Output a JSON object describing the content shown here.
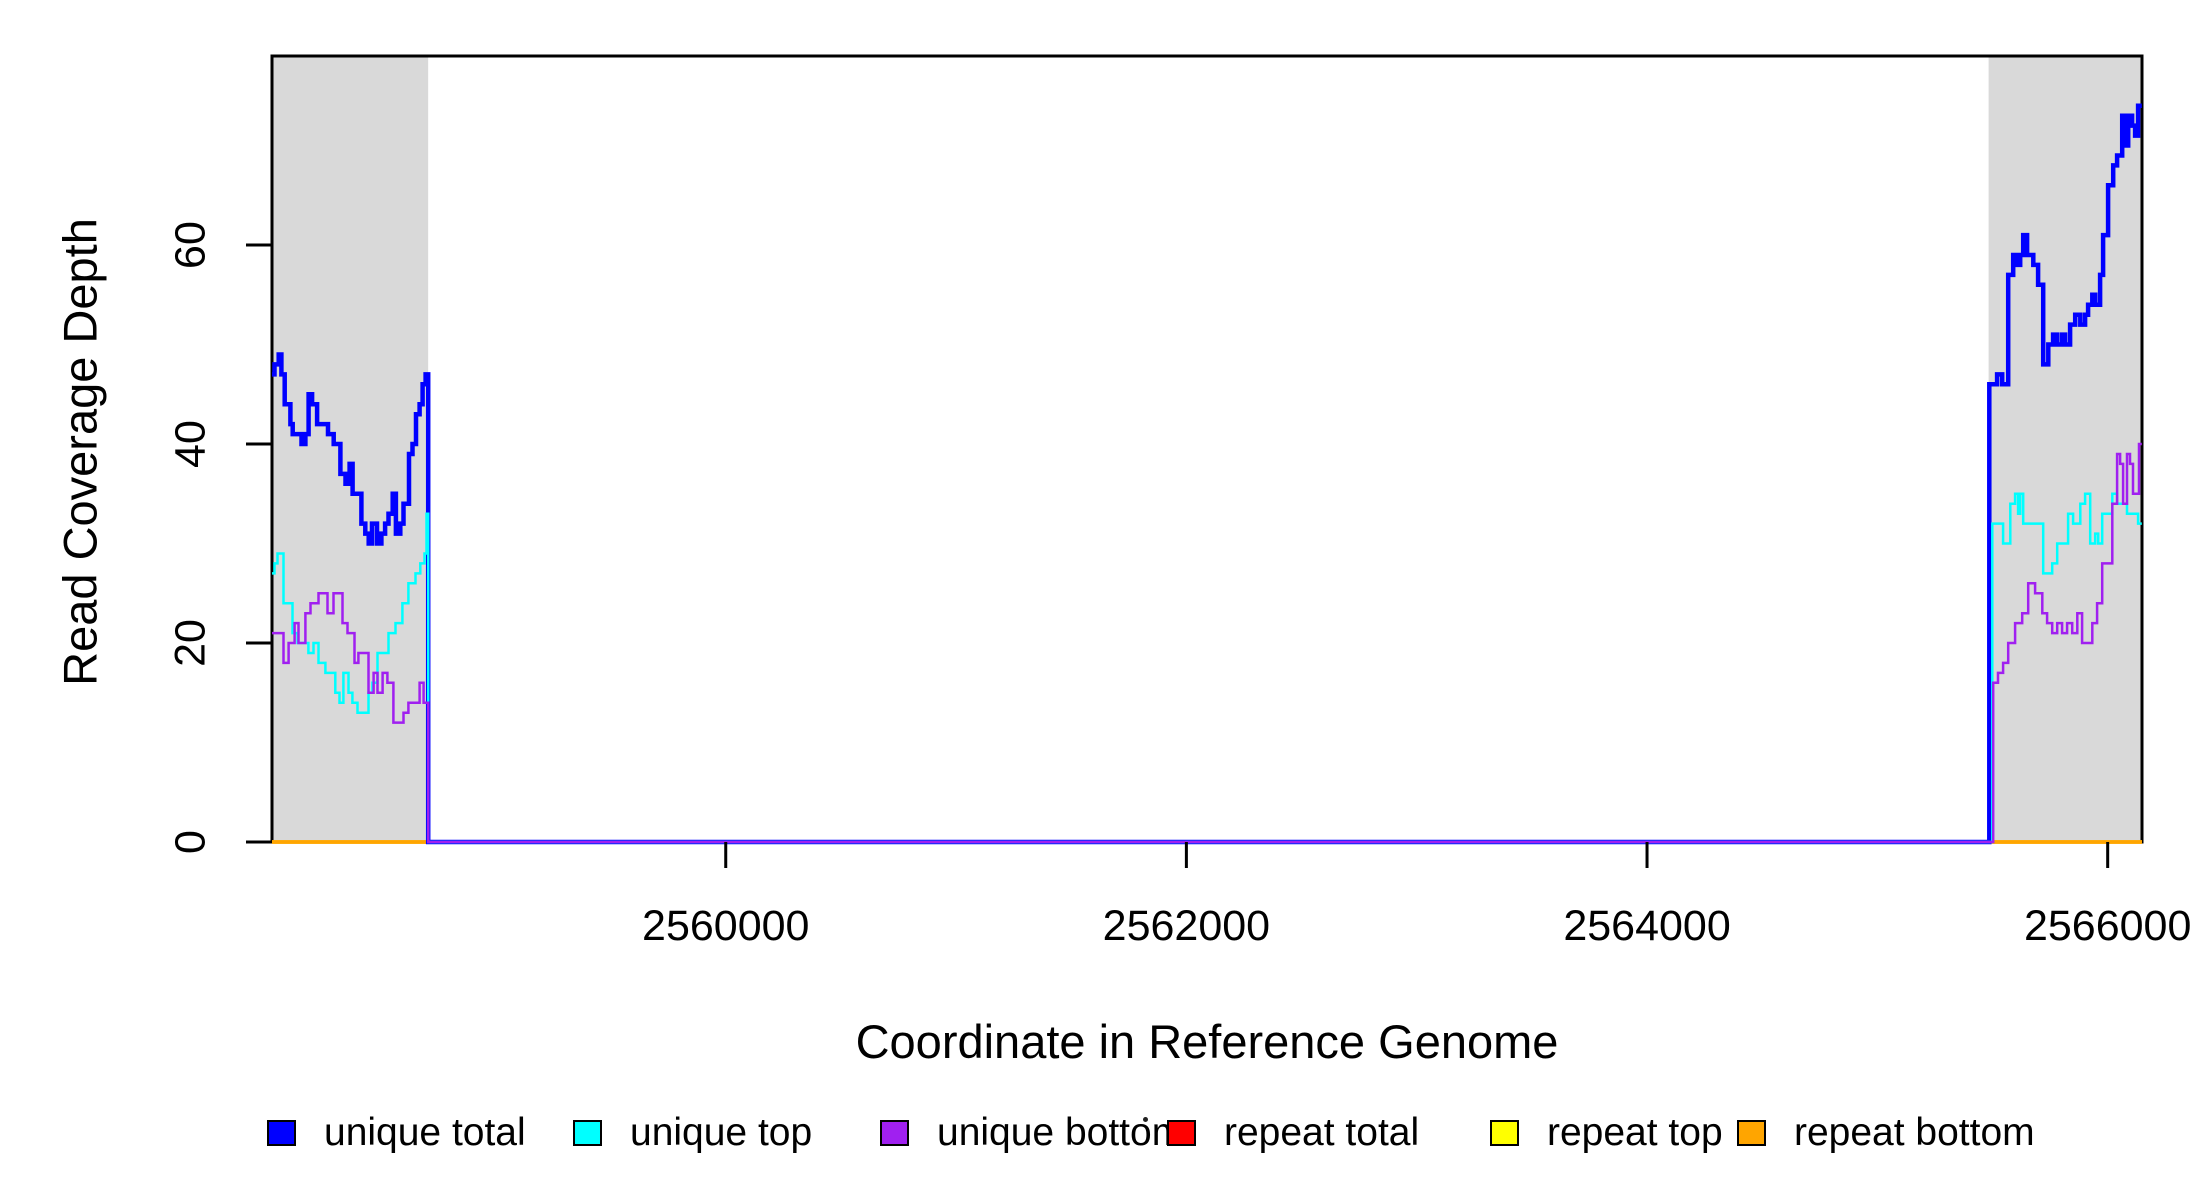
{
  "y_axis": {
    "label": "Read Coverage Depth",
    "tick_labels": [
      "0",
      "20",
      "40",
      "60"
    ],
    "ticks": [
      0,
      20,
      40,
      60
    ]
  },
  "x_axis": {
    "label": "Coordinate in Reference Genome",
    "tick_labels": [
      "2560000",
      "2562000",
      "2564000",
      "2566000"
    ],
    "ticks": [
      2560000,
      2562000,
      2564000,
      2566000
    ]
  },
  "legend": {
    "items": [
      {
        "label": "unique total",
        "color": "#0000FF"
      },
      {
        "label": "unique top",
        "color": "#00FFFF"
      },
      {
        "label": "unique bottom",
        "color": "#A020F0"
      },
      {
        "label": "repeat total",
        "color": "#FF0000"
      },
      {
        "label": "repeat top",
        "color": "#FFFF00"
      },
      {
        "label": "repeat bottom",
        "color": "#FFA500"
      }
    ],
    "stray_dot": true
  },
  "colors": {
    "shaded_region": "#D9D9D9",
    "frame": "#000000",
    "background": "#FFFFFF"
  },
  "chart_data": {
    "type": "line",
    "subtype": "step",
    "title": "",
    "xlabel": "Coordinate in Reference Genome",
    "ylabel": "Read Coverage Depth",
    "xlim": [
      2558030,
      2566149
    ],
    "ylim": [
      0,
      79
    ],
    "x_ticks": [
      2560000,
      2562000,
      2564000,
      2566000
    ],
    "x_tick_labels": [
      "2560000",
      "2562000",
      "2564000",
      "2566000"
    ],
    "y_ticks": [
      0,
      20,
      40,
      60
    ],
    "y_tick_labels": [
      "0",
      "20",
      "40",
      "60"
    ],
    "grid": false,
    "legend_position": "bottom",
    "shaded_regions": [
      [
        2558030,
        2558708
      ],
      [
        2565483,
        2566149
      ]
    ],
    "series": [
      {
        "name": "repeat total",
        "color": "#FF0000",
        "line_width": 3.5,
        "points": [
          [
            2558030,
            0
          ],
          [
            2566149,
            0
          ]
        ]
      },
      {
        "name": "repeat top",
        "color": "#FFFF00",
        "line_width": 3.5,
        "points": [
          [
            2558030,
            0
          ],
          [
            2566149,
            0
          ]
        ]
      },
      {
        "name": "repeat bottom",
        "color": "#FFA500",
        "line_width": 3.5,
        "points": [
          [
            2558030,
            0
          ],
          [
            2566149,
            0
          ]
        ]
      },
      {
        "name": "unique total",
        "color": "#0000FF",
        "line_width": 4.5,
        "points": [
          [
            2558030,
            47
          ],
          [
            2558041,
            48
          ],
          [
            2558059,
            49
          ],
          [
            2558071,
            47
          ],
          [
            2558085,
            44
          ],
          [
            2558110,
            42
          ],
          [
            2558120,
            41
          ],
          [
            2558158,
            40
          ],
          [
            2558175,
            41
          ],
          [
            2558189,
            45
          ],
          [
            2558204,
            44
          ],
          [
            2558226,
            42
          ],
          [
            2558273,
            41
          ],
          [
            2558298,
            40
          ],
          [
            2558327,
            37
          ],
          [
            2558349,
            36
          ],
          [
            2558367,
            38
          ],
          [
            2558380,
            35
          ],
          [
            2558418,
            32
          ],
          [
            2558435,
            31
          ],
          [
            2558450,
            30
          ],
          [
            2558464,
            32
          ],
          [
            2558486,
            30
          ],
          [
            2558505,
            31
          ],
          [
            2558521,
            32
          ],
          [
            2558536,
            33
          ],
          [
            2558554,
            35
          ],
          [
            2558568,
            31
          ],
          [
            2558587,
            32
          ],
          [
            2558601,
            34
          ],
          [
            2558625,
            39
          ],
          [
            2558640,
            40
          ],
          [
            2558655,
            43
          ],
          [
            2558671,
            44
          ],
          [
            2558684,
            46
          ],
          [
            2558697,
            47
          ],
          [
            2558708,
            0
          ],
          [
            2565486,
            46
          ],
          [
            2565520,
            47
          ],
          [
            2565542,
            46
          ],
          [
            2565568,
            57
          ],
          [
            2565590,
            59
          ],
          [
            2565607,
            58
          ],
          [
            2565620,
            59
          ],
          [
            2565633,
            61
          ],
          [
            2565650,
            59
          ],
          [
            2565677,
            58
          ],
          [
            2565698,
            56
          ],
          [
            2565720,
            48
          ],
          [
            2565742,
            50
          ],
          [
            2565763,
            51
          ],
          [
            2565781,
            50
          ],
          [
            2565802,
            51
          ],
          [
            2565815,
            50
          ],
          [
            2565837,
            52
          ],
          [
            2565859,
            53
          ],
          [
            2565881,
            52
          ],
          [
            2565902,
            53
          ],
          [
            2565915,
            54
          ],
          [
            2565933,
            55
          ],
          [
            2565946,
            54
          ],
          [
            2565967,
            57
          ],
          [
            2565980,
            61
          ],
          [
            2566002,
            66
          ],
          [
            2566024,
            68
          ],
          [
            2566041,
            69
          ],
          [
            2566063,
            73
          ],
          [
            2566076,
            70
          ],
          [
            2566089,
            73
          ],
          [
            2566106,
            72
          ],
          [
            2566119,
            71
          ],
          [
            2566132,
            74
          ],
          [
            2566148,
            74
          ]
        ]
      },
      {
        "name": "unique top",
        "color": "#00FFFF",
        "line_width": 2.5,
        "points": [
          [
            2558030,
            27
          ],
          [
            2558041,
            28
          ],
          [
            2558054,
            29
          ],
          [
            2558080,
            24
          ],
          [
            2558097,
            24
          ],
          [
            2558119,
            21
          ],
          [
            2558141,
            20
          ],
          [
            2558188,
            19
          ],
          [
            2558210,
            20
          ],
          [
            2558232,
            18
          ],
          [
            2558262,
            17
          ],
          [
            2558305,
            15
          ],
          [
            2558323,
            14
          ],
          [
            2558340,
            17
          ],
          [
            2558362,
            15
          ],
          [
            2558379,
            14
          ],
          [
            2558401,
            13
          ],
          [
            2558436,
            13
          ],
          [
            2558449,
            15
          ],
          [
            2558466,
            16
          ],
          [
            2558488,
            19
          ],
          [
            2558514,
            19
          ],
          [
            2558536,
            21
          ],
          [
            2558566,
            22
          ],
          [
            2558596,
            24
          ],
          [
            2558622,
            26
          ],
          [
            2558653,
            27
          ],
          [
            2558674,
            28
          ],
          [
            2558692,
            29
          ],
          [
            2558701,
            33
          ],
          [
            2558708,
            0
          ],
          [
            2565499,
            32
          ],
          [
            2565546,
            30
          ],
          [
            2565577,
            34
          ],
          [
            2565598,
            35
          ],
          [
            2565611,
            33
          ],
          [
            2565620,
            35
          ],
          [
            2565633,
            32
          ],
          [
            2565720,
            27
          ],
          [
            2565759,
            28
          ],
          [
            2565781,
            30
          ],
          [
            2565828,
            33
          ],
          [
            2565850,
            32
          ],
          [
            2565881,
            34
          ],
          [
            2565902,
            35
          ],
          [
            2565924,
            30
          ],
          [
            2565946,
            31
          ],
          [
            2565959,
            30
          ],
          [
            2565976,
            33
          ],
          [
            2566020,
            35
          ],
          [
            2566041,
            34
          ],
          [
            2566084,
            33
          ],
          [
            2566132,
            32
          ],
          [
            2566148,
            32
          ]
        ]
      },
      {
        "name": "unique bottom",
        "color": "#A020F0",
        "line_width": 2.5,
        "points": [
          [
            2558030,
            21
          ],
          [
            2558080,
            18
          ],
          [
            2558102,
            20
          ],
          [
            2558128,
            22
          ],
          [
            2558145,
            20
          ],
          [
            2558175,
            23
          ],
          [
            2558197,
            24
          ],
          [
            2558232,
            25
          ],
          [
            2558271,
            23
          ],
          [
            2558297,
            25
          ],
          [
            2558336,
            22
          ],
          [
            2558358,
            21
          ],
          [
            2558388,
            18
          ],
          [
            2558405,
            19
          ],
          [
            2558449,
            15
          ],
          [
            2558471,
            17
          ],
          [
            2558488,
            15
          ],
          [
            2558510,
            17
          ],
          [
            2558531,
            16
          ],
          [
            2558557,
            12
          ],
          [
            2558601,
            13
          ],
          [
            2558622,
            14
          ],
          [
            2558671,
            16
          ],
          [
            2558688,
            14
          ],
          [
            2558708,
            0
          ],
          [
            2565503,
            16
          ],
          [
            2565524,
            17
          ],
          [
            2565546,
            18
          ],
          [
            2565568,
            20
          ],
          [
            2565598,
            22
          ],
          [
            2565629,
            23
          ],
          [
            2565655,
            26
          ],
          [
            2565685,
            25
          ],
          [
            2565716,
            23
          ],
          [
            2565737,
            22
          ],
          [
            2565759,
            21
          ],
          [
            2565781,
            22
          ],
          [
            2565802,
            21
          ],
          [
            2565824,
            22
          ],
          [
            2565846,
            21
          ],
          [
            2565868,
            23
          ],
          [
            2565889,
            20
          ],
          [
            2565933,
            22
          ],
          [
            2565954,
            24
          ],
          [
            2565976,
            28
          ],
          [
            2566020,
            34
          ],
          [
            2566041,
            39
          ],
          [
            2566054,
            38
          ],
          [
            2566067,
            34
          ],
          [
            2566084,
            39
          ],
          [
            2566097,
            38
          ],
          [
            2566110,
            35
          ],
          [
            2566136,
            40
          ],
          [
            2566148,
            40
          ]
        ]
      }
    ]
  }
}
